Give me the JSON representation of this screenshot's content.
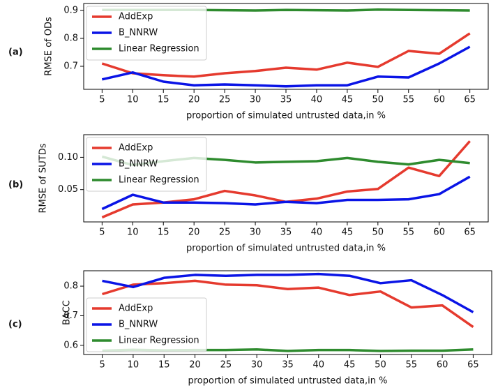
{
  "chart_data": [
    {
      "type": "line",
      "panel_label": "(a)",
      "xlabel": "proportion of simulated untrusted data,in %",
      "ylabel": "RMSE of ODs",
      "x": [
        5,
        10,
        15,
        20,
        25,
        30,
        35,
        40,
        45,
        50,
        55,
        60,
        65
      ],
      "xlim": [
        2,
        68
      ],
      "xticks": [
        5,
        10,
        15,
        20,
        25,
        30,
        35,
        40,
        45,
        50,
        55,
        60,
        65
      ],
      "ylim": [
        0.6175,
        0.925
      ],
      "yticks": [
        0.7,
        0.8,
        0.9
      ],
      "legend": "upper left",
      "series": [
        {
          "name": "AddExp",
          "color": "#e53a2e",
          "values": [
            0.71,
            0.675,
            0.668,
            0.663,
            0.675,
            0.683,
            0.695,
            0.688,
            0.713,
            0.698,
            0.755,
            0.745,
            0.818
          ]
        },
        {
          "name": "B_NNRW",
          "color": "#0a14e6",
          "values": [
            0.653,
            0.678,
            0.645,
            0.632,
            0.635,
            0.632,
            0.628,
            0.632,
            0.632,
            0.663,
            0.66,
            0.71,
            0.77
          ]
        },
        {
          "name": "Linear Regression",
          "color": "#2e8b2e",
          "values": [
            0.902,
            0.902,
            0.902,
            0.902,
            0.901,
            0.9,
            0.902,
            0.901,
            0.9,
            0.903,
            0.902,
            0.901,
            0.9
          ]
        }
      ]
    },
    {
      "type": "line",
      "panel_label": "(b)",
      "xlabel": "proportion of simulated untrusted data,in %",
      "ylabel": "RMSE of SUTDs",
      "x": [
        5,
        10,
        15,
        20,
        25,
        30,
        35,
        40,
        45,
        50,
        55,
        60,
        65
      ],
      "xlim": [
        2,
        68
      ],
      "xticks": [
        5,
        10,
        15,
        20,
        25,
        30,
        35,
        40,
        45,
        50,
        55,
        60,
        65
      ],
      "ylim": [
        0.0,
        0.135
      ],
      "yticks": [
        {
          "value": 0.05,
          "label": "0.05"
        },
        {
          "value": 0.1,
          "label": "0.10"
        }
      ],
      "legend": "upper left",
      "series": [
        {
          "name": "AddExp",
          "color": "#e53a2e",
          "values": [
            0.007,
            0.027,
            0.03,
            0.035,
            0.048,
            0.041,
            0.031,
            0.036,
            0.047,
            0.051,
            0.084,
            0.071,
            0.125
          ]
        },
        {
          "name": "B_NNRW",
          "color": "#0a14e6",
          "values": [
            0.02,
            0.042,
            0.03,
            0.03,
            0.029,
            0.027,
            0.031,
            0.029,
            0.034,
            0.034,
            0.035,
            0.043,
            0.07
          ]
        },
        {
          "name": "Linear Regression",
          "color": "#2e8b2e",
          "values": [
            0.101,
            0.088,
            0.094,
            0.099,
            0.096,
            0.092,
            0.093,
            0.094,
            0.099,
            0.093,
            0.089,
            0.096,
            0.091
          ]
        }
      ]
    },
    {
      "type": "line",
      "panel_label": "(c)",
      "xlabel": "proportion of simulated untrusted data,in %",
      "ylabel": "BACC",
      "x": [
        5,
        10,
        15,
        20,
        25,
        30,
        35,
        40,
        45,
        50,
        55,
        60,
        65
      ],
      "xlim": [
        2,
        68
      ],
      "xticks": [
        5,
        10,
        15,
        20,
        25,
        30,
        35,
        40,
        45,
        50,
        55,
        60,
        65
      ],
      "ylim": [
        0.569,
        0.852
      ],
      "yticks": [
        0.6,
        0.7,
        0.8
      ],
      "legend": "lower left",
      "series": [
        {
          "name": "AddExp",
          "color": "#e53a2e",
          "values": [
            0.773,
            0.805,
            0.81,
            0.818,
            0.805,
            0.803,
            0.79,
            0.795,
            0.77,
            0.782,
            0.728,
            0.735,
            0.662
          ]
        },
        {
          "name": "B_NNRW",
          "color": "#0a14e6",
          "values": [
            0.818,
            0.797,
            0.828,
            0.838,
            0.835,
            0.838,
            0.838,
            0.841,
            0.835,
            0.81,
            0.82,
            0.77,
            0.712
          ]
        },
        {
          "name": "Linear Regression",
          "color": "#2e8b2e",
          "values": [
            0.582,
            0.585,
            0.583,
            0.584,
            0.584,
            0.586,
            0.581,
            0.584,
            0.584,
            0.581,
            0.582,
            0.582,
            0.586
          ]
        }
      ]
    }
  ]
}
